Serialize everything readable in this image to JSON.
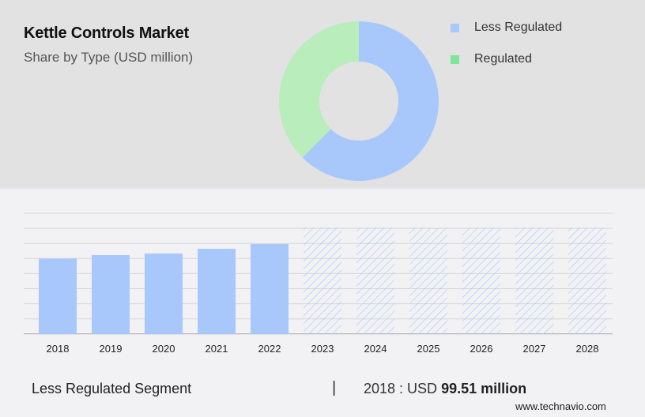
{
  "header": {
    "title": "Kettle Controls Market",
    "subtitle": "Share by Type (USD million)"
  },
  "legend": [
    {
      "label": "Less Regulated",
      "color": "#a8c8fc"
    },
    {
      "label": "Regulated",
      "color": "#7ee59a"
    }
  ],
  "footer": {
    "segment_label": "Less Regulated Segment",
    "separator": "|",
    "value_prefix": "2018 : USD ",
    "value_bold": "99.51 million",
    "source": "www.technavio.com"
  },
  "colors": {
    "less_regulated": "#a8c8fc",
    "regulated_donut": "#b9edbb",
    "regulated_legend": "#7ee59a",
    "top_bg": "#e2e2e2",
    "bottom_bg": "#f2f2f4",
    "gridline": "#d6d6d8"
  },
  "chart_data": [
    {
      "type": "pie",
      "title": "Kettle Controls Market",
      "subtitle": "Share by Type (USD million)",
      "donut": true,
      "categories": [
        "Less Regulated",
        "Regulated"
      ],
      "values": [
        62.5,
        37.5
      ],
      "unit": "% share (estimated from arc)",
      "legend_position": "right"
    },
    {
      "type": "bar",
      "title": "Less Regulated Segment",
      "categories": [
        "2018",
        "2019",
        "2020",
        "2021",
        "2022",
        "2023",
        "2024",
        "2025",
        "2026",
        "2027",
        "2028"
      ],
      "values": [
        99.51,
        104.2,
        106.3,
        112.5,
        118.8,
        null,
        null,
        null,
        null,
        null,
        null
      ],
      "forecast_from": "2023",
      "forecast_style": "hatched",
      "xlabel": "",
      "ylabel": "USD million",
      "grid": true,
      "annotation": "2018 : USD 99.51 million"
    }
  ]
}
